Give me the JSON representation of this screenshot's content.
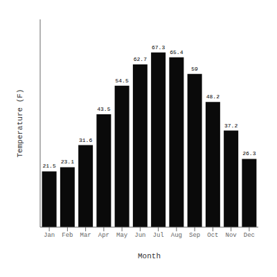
{
  "chart_data": {
    "type": "bar",
    "categories": [
      "Jan",
      "Feb",
      "Mar",
      "Apr",
      "May",
      "Jun",
      "Jul",
      "Aug",
      "Sep",
      "Oct",
      "Nov",
      "Dec"
    ],
    "values": [
      21.5,
      23.1,
      31.6,
      43.5,
      54.5,
      62.7,
      67.3,
      65.4,
      59.0,
      48.2,
      37.2,
      26.3
    ],
    "color": "#0a0a0a",
    "xlabel": "Month",
    "ylabel": "Temperature (F)",
    "ylim": [
      0,
      80
    ],
    "yticks": [],
    "tick_labels": "x",
    "grid": false,
    "data_labels": true
  }
}
